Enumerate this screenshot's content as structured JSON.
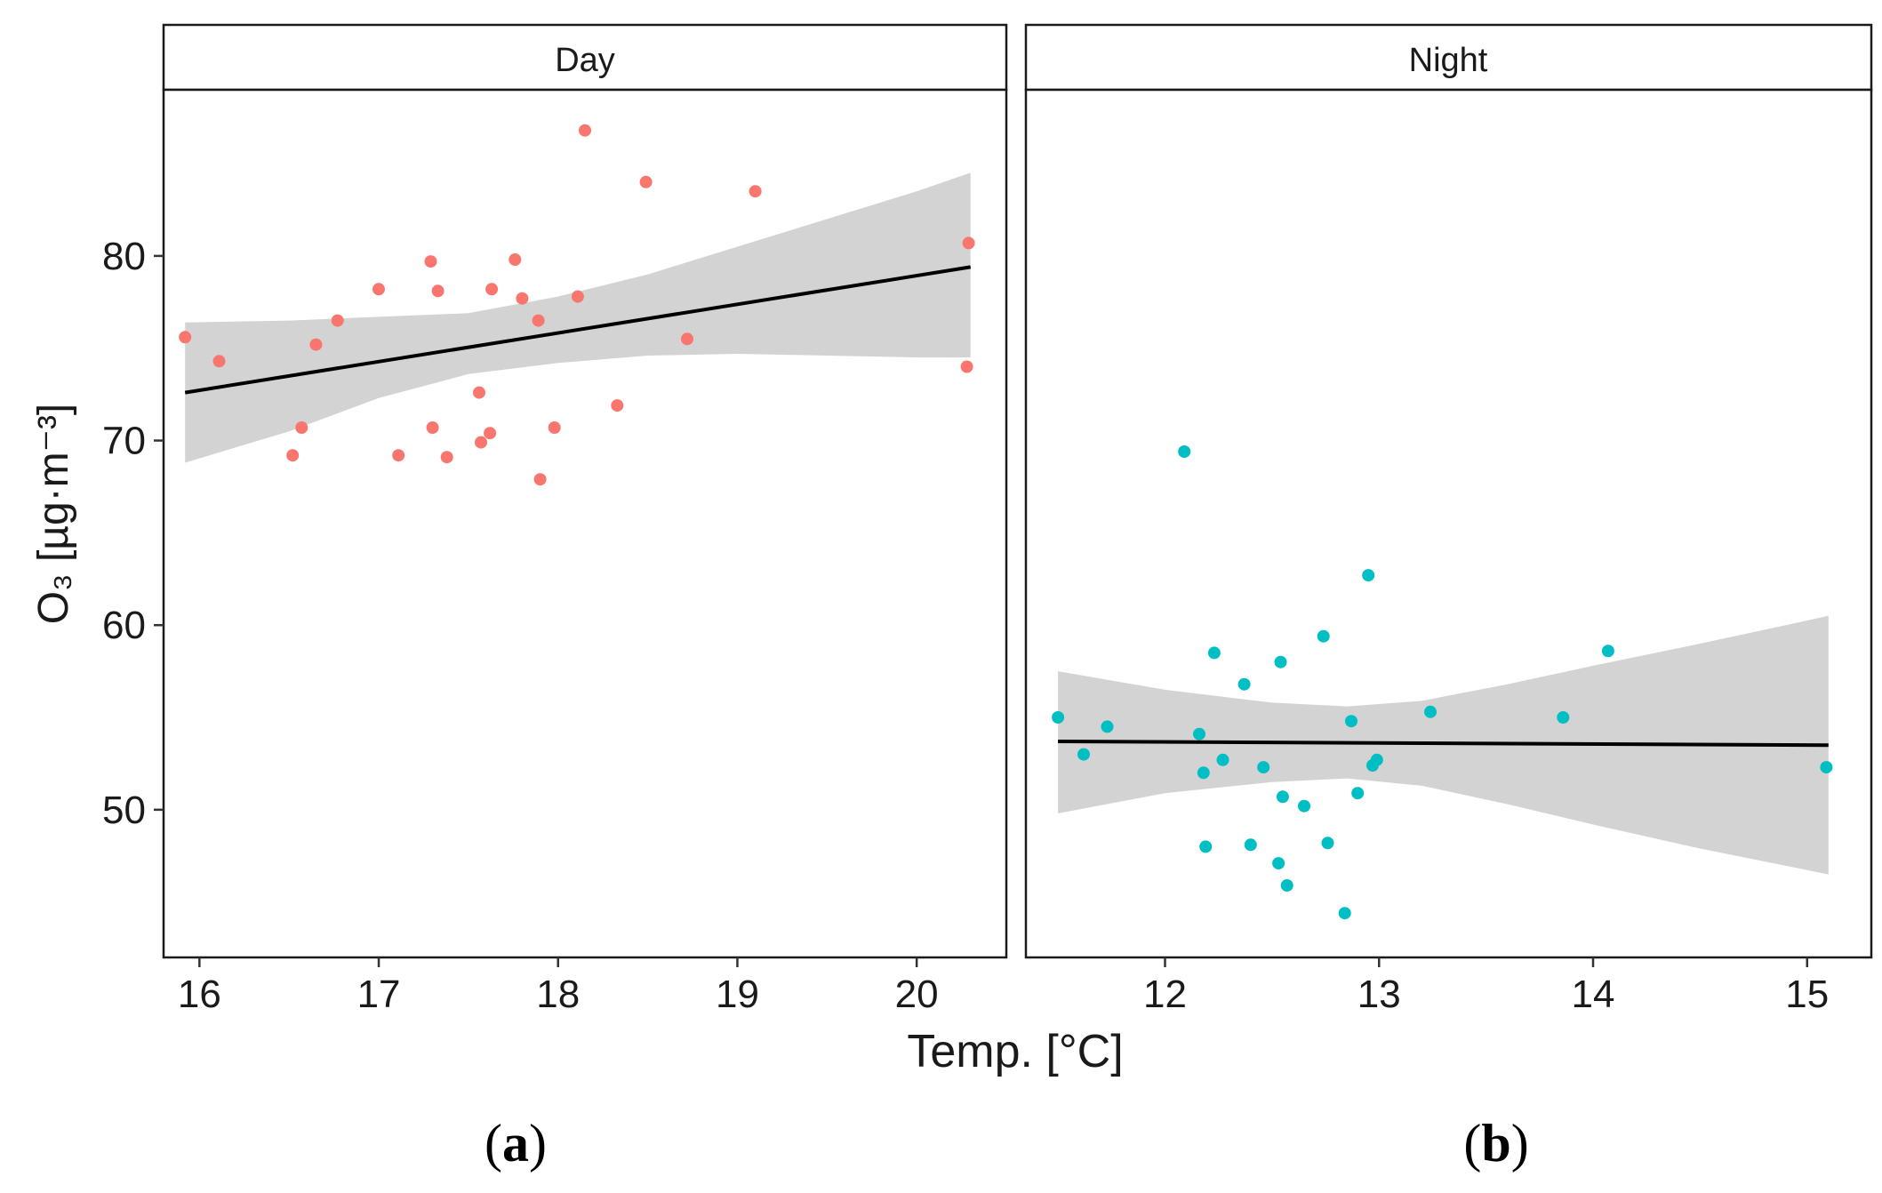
{
  "chart_data": [
    {
      "type": "scatter",
      "panel_letter": "a",
      "strip_title": "Day",
      "xlabel": "Temp. [°C]",
      "ylabel": "O₃ [µg·m⁻³]",
      "xlim": [
        15.8,
        20.5
      ],
      "ylim": [
        42,
        89
      ],
      "x_ticks": [
        16,
        17,
        18,
        19,
        20
      ],
      "y_ticks": [
        50,
        60,
        70,
        80
      ],
      "point_color": "#F8766D",
      "fit_line": {
        "x": [
          15.92,
          20.3
        ],
        "y": [
          72.6,
          79.4
        ]
      },
      "confidence_band": {
        "x": [
          15.92,
          16.5,
          17.0,
          17.5,
          18.0,
          18.5,
          19.0,
          19.5,
          20.0,
          20.3
        ],
        "upper": [
          76.4,
          76.5,
          76.7,
          76.9,
          77.8,
          79.0,
          80.5,
          82.0,
          83.5,
          84.5
        ],
        "lower": [
          68.8,
          70.5,
          72.3,
          73.6,
          74.2,
          74.6,
          74.7,
          74.6,
          74.5,
          74.5
        ]
      },
      "points": [
        {
          "x": 15.92,
          "y": 75.6
        },
        {
          "x": 16.11,
          "y": 74.3
        },
        {
          "x": 16.52,
          "y": 69.2
        },
        {
          "x": 16.57,
          "y": 70.7
        },
        {
          "x": 16.65,
          "y": 75.2
        },
        {
          "x": 16.77,
          "y": 76.5
        },
        {
          "x": 17.0,
          "y": 78.2
        },
        {
          "x": 17.11,
          "y": 69.2
        },
        {
          "x": 17.29,
          "y": 79.7
        },
        {
          "x": 17.3,
          "y": 70.7
        },
        {
          "x": 17.33,
          "y": 78.1
        },
        {
          "x": 17.38,
          "y": 69.1
        },
        {
          "x": 17.56,
          "y": 72.6
        },
        {
          "x": 17.57,
          "y": 69.9
        },
        {
          "x": 17.62,
          "y": 70.4
        },
        {
          "x": 17.63,
          "y": 78.2
        },
        {
          "x": 17.76,
          "y": 79.8
        },
        {
          "x": 17.8,
          "y": 77.7
        },
        {
          "x": 17.89,
          "y": 76.5
        },
        {
          "x": 17.9,
          "y": 67.9
        },
        {
          "x": 17.98,
          "y": 70.7
        },
        {
          "x": 18.11,
          "y": 77.8
        },
        {
          "x": 18.15,
          "y": 86.8
        },
        {
          "x": 18.33,
          "y": 71.9
        },
        {
          "x": 18.49,
          "y": 84.0
        },
        {
          "x": 18.72,
          "y": 75.5
        },
        {
          "x": 19.1,
          "y": 83.5
        },
        {
          "x": 20.28,
          "y": 74.0
        },
        {
          "x": 20.29,
          "y": 80.7
        }
      ]
    },
    {
      "type": "scatter",
      "panel_letter": "b",
      "strip_title": "Night",
      "xlabel": "Temp. [°C]",
      "ylabel": "O₃ [µg·m⁻³]",
      "xlim": [
        11.35,
        15.3
      ],
      "ylim": [
        42,
        89
      ],
      "x_ticks": [
        12,
        13,
        14,
        15
      ],
      "y_ticks": [
        50,
        60,
        70,
        80
      ],
      "point_color": "#00BFC4",
      "fit_line": {
        "x": [
          11.5,
          15.1
        ],
        "y": [
          53.7,
          53.5
        ]
      },
      "confidence_band": {
        "x": [
          11.5,
          12.0,
          12.5,
          12.85,
          13.2,
          13.6,
          14.0,
          14.5,
          15.1
        ],
        "upper": [
          57.5,
          56.5,
          55.8,
          55.6,
          55.9,
          56.8,
          57.8,
          59.0,
          60.5
        ],
        "lower": [
          49.8,
          50.9,
          51.5,
          51.7,
          51.3,
          50.3,
          49.2,
          47.9,
          46.5
        ]
      },
      "points": [
        {
          "x": 11.5,
          "y": 55.0
        },
        {
          "x": 11.62,
          "y": 53.0
        },
        {
          "x": 11.73,
          "y": 54.5
        },
        {
          "x": 12.09,
          "y": 69.4
        },
        {
          "x": 12.16,
          "y": 54.1
        },
        {
          "x": 12.18,
          "y": 52.0
        },
        {
          "x": 12.19,
          "y": 48.0
        },
        {
          "x": 12.23,
          "y": 58.5
        },
        {
          "x": 12.27,
          "y": 52.7
        },
        {
          "x": 12.37,
          "y": 56.8
        },
        {
          "x": 12.4,
          "y": 48.1
        },
        {
          "x": 12.46,
          "y": 52.3
        },
        {
          "x": 12.53,
          "y": 47.1
        },
        {
          "x": 12.54,
          "y": 58.0
        },
        {
          "x": 12.55,
          "y": 50.7
        },
        {
          "x": 12.57,
          "y": 45.9
        },
        {
          "x": 12.65,
          "y": 50.2
        },
        {
          "x": 12.74,
          "y": 59.4
        },
        {
          "x": 12.76,
          "y": 48.2
        },
        {
          "x": 12.84,
          "y": 44.4
        },
        {
          "x": 12.87,
          "y": 54.8
        },
        {
          "x": 12.9,
          "y": 50.9
        },
        {
          "x": 12.95,
          "y": 62.7
        },
        {
          "x": 12.97,
          "y": 52.4
        },
        {
          "x": 12.99,
          "y": 52.7
        },
        {
          "x": 13.24,
          "y": 55.3
        },
        {
          "x": 13.86,
          "y": 55.0
        },
        {
          "x": 14.07,
          "y": 58.6
        },
        {
          "x": 15.09,
          "y": 52.3
        }
      ]
    }
  ]
}
